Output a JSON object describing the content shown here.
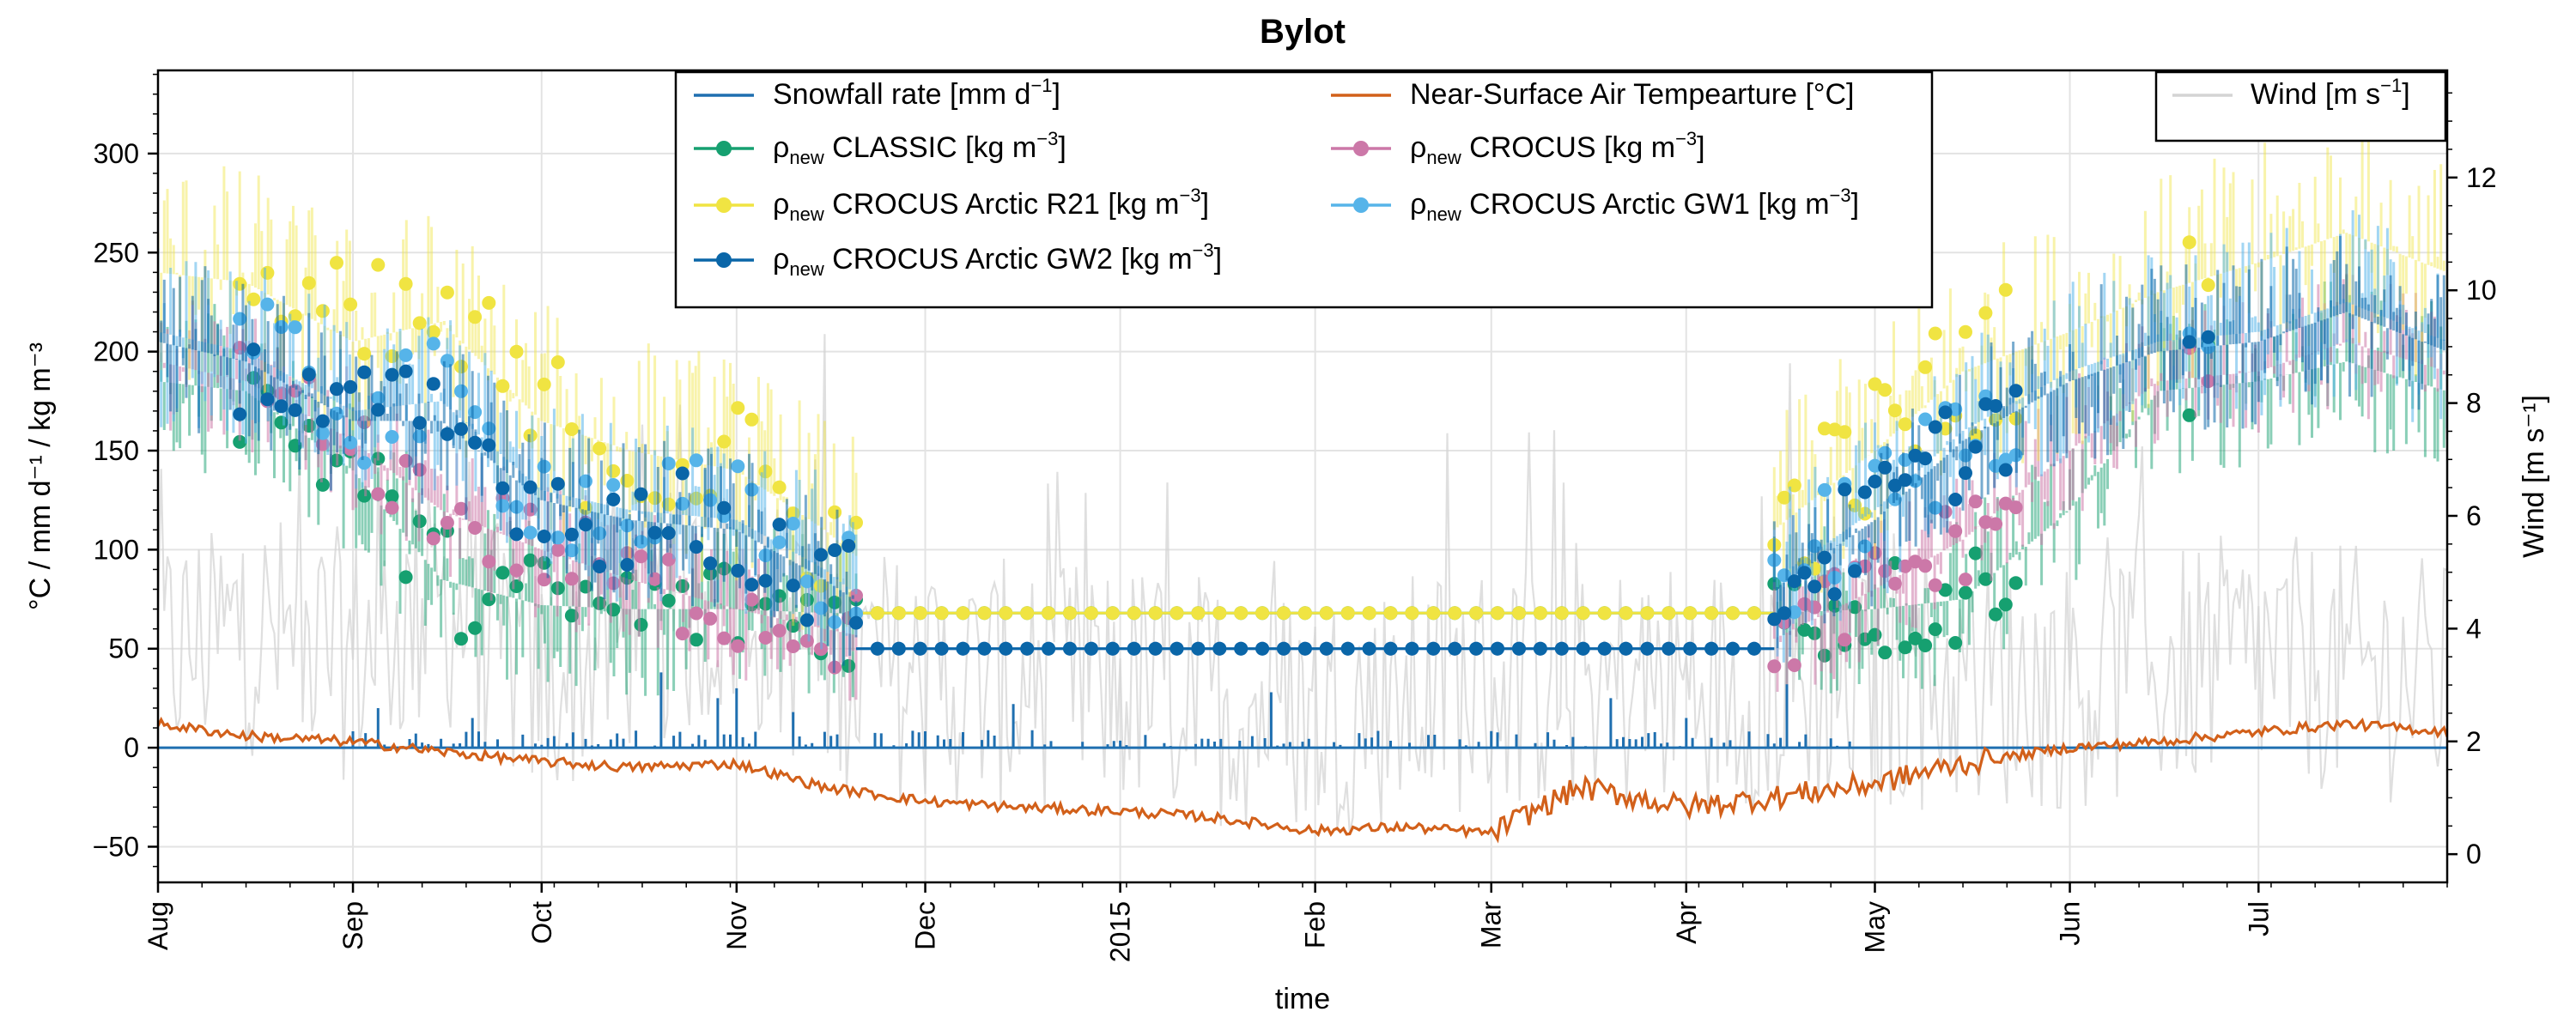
{
  "chart_data": {
    "type": "line",
    "title": "Bylot",
    "xlabel": "time",
    "ylabel_left": "°C / mm d⁻¹ / kg m⁻³",
    "ylabel_right": "Wind [m s⁻¹]",
    "x_range": [
      "2014-08-01",
      "2015-07-31"
    ],
    "x_tick_labels": [
      "Aug",
      "Sep",
      "Oct",
      "Nov",
      "Dec",
      "2015",
      "Feb",
      "Mar",
      "Apr",
      "May",
      "Jun",
      "Jul"
    ],
    "x_tick_dates": [
      "2014-08-01",
      "2014-09-01",
      "2014-10-01",
      "2014-11-01",
      "2014-12-01",
      "2015-01-01",
      "2015-02-01",
      "2015-03-01",
      "2015-04-01",
      "2015-05-01",
      "2015-06-01",
      "2015-07-01"
    ],
    "ylim_left": [
      -68,
      342
    ],
    "yticks_left": [
      -50,
      0,
      50,
      100,
      150,
      200,
      250,
      300
    ],
    "ylim_right": [
      -0.5,
      13.9
    ],
    "yticks_right": [
      0,
      2,
      4,
      6,
      8,
      10,
      12
    ],
    "grid": true,
    "legend_main": {
      "position": "top-center",
      "entries": [
        {
          "label": "Snowfall rate [mm d⁻¹]",
          "marker": false
        },
        {
          "label": "ρnew CLASSIC [kg m⁻³]",
          "marker": true
        },
        {
          "label": "ρnew CROCUS Arctic R21 [kg m⁻³]",
          "marker": true
        },
        {
          "label": "ρnew CROCUS Arctic GW2 [kg m⁻³]",
          "marker": true
        },
        {
          "label": "Near-Surface Air Tempearture [°C]",
          "marker": false
        },
        {
          "label": "ρnew CROCUS [kg m⁻³]",
          "marker": true
        },
        {
          "label": "ρnew CROCUS Arctic GW1 [kg m⁻³]",
          "marker": true
        }
      ]
    },
    "legend_wind": {
      "position": "top-right",
      "label": "Wind [m s⁻¹]"
    },
    "colors": {
      "snowfall": "#1f6fb0",
      "temperature": "#d2601a",
      "classic": "#16a070",
      "crocus": "#cc78a8",
      "r21": "#f0e442",
      "gw1": "#56b4e9",
      "gw2": "#0a66a8",
      "wind": "#d4d4d4"
    },
    "series": [
      {
        "name": "Near-Surface Air Tempearture [°C]",
        "axis": "left",
        "x": [
          "2014-08-01",
          "2014-08-15",
          "2014-09-01",
          "2014-09-15",
          "2014-10-01",
          "2014-10-15",
          "2014-11-01",
          "2014-11-15",
          "2014-12-01",
          "2014-12-15",
          "2015-01-01",
          "2015-01-15",
          "2015-02-01",
          "2015-02-15",
          "2015-03-01",
          "2015-03-15",
          "2015-04-01",
          "2015-04-15",
          "2015-05-01",
          "2015-05-15",
          "2015-06-01",
          "2015-06-15",
          "2015-07-01",
          "2015-07-15",
          "2015-07-31"
        ],
        "values": [
          12,
          6,
          3,
          -2,
          -7,
          -10,
          -8,
          -20,
          -27,
          -30,
          -32,
          -35,
          -42,
          -40,
          -43,
          -20,
          -30,
          -25,
          -18,
          -8,
          0,
          3,
          8,
          12,
          8
        ]
      },
      {
        "name": "Snowfall rate [mm d⁻¹]",
        "axis": "left",
        "x": [
          "2014-09-05",
          "2014-09-20",
          "2014-10-20",
          "2014-10-29",
          "2014-11-01",
          "2014-11-10",
          "2014-12-15",
          "2015-01-25",
          "2015-03-20",
          "2015-04-01",
          "2015-04-17"
        ],
        "values": [
          20,
          15,
          38,
          25,
          30,
          18,
          22,
          28,
          25,
          15,
          32
        ]
      },
      {
        "name": "ρnew CLASSIC [kg m⁻³]",
        "axis": "left",
        "x": [
          "2014-08-01",
          "2014-08-15",
          "2014-09-01",
          "2014-09-15",
          "2014-10-01",
          "2014-10-15",
          "2014-11-01",
          "2014-11-15",
          "2014-12-01",
          "2014-12-15",
          "2015-01-01",
          "2015-02-01",
          "2015-03-01",
          "2015-04-01",
          "2015-04-15",
          "2015-05-01",
          "2015-05-15",
          "2015-06-01",
          "2015-06-15",
          "2015-07-01",
          "2015-07-15",
          "2015-07-31"
        ],
        "values": [
          185,
          180,
          140,
          85,
          72,
          70,
          70,
          68,
          68,
          68,
          68,
          68,
          68,
          68,
          68,
          70,
          75,
          120,
          180,
          185,
          195,
          180
        ]
      },
      {
        "name": "ρnew CROCUS [kg m⁻³]",
        "axis": "left",
        "x": [
          "2014-08-01",
          "2014-08-15",
          "2014-09-01",
          "2014-09-15",
          "2014-10-01",
          "2014-10-15",
          "2014-11-01",
          "2014-11-15",
          "2014-12-01",
          "2015-01-01",
          "2015-02-01",
          "2015-03-01",
          "2015-04-01",
          "2015-04-15",
          "2015-05-01",
          "2015-05-15",
          "2015-06-01",
          "2015-06-15",
          "2015-07-01",
          "2015-07-15",
          "2015-07-31"
        ],
        "values": [
          195,
          185,
          155,
          120,
          100,
          85,
          70,
          60,
          50,
          50,
          50,
          50,
          50,
          55,
          80,
          105,
          150,
          185,
          190,
          205,
          190
        ]
      },
      {
        "name": "ρnew CROCUS Arctic R21 [kg m⁻³]",
        "axis": "left",
        "x": [
          "2014-08-01",
          "2014-08-15",
          "2014-09-01",
          "2014-09-15",
          "2014-10-01",
          "2014-10-15",
          "2014-11-01",
          "2014-11-15",
          "2014-12-01",
          "2015-01-01",
          "2015-02-01",
          "2015-03-01",
          "2015-04-01",
          "2015-04-15",
          "2015-05-01",
          "2015-05-15",
          "2015-06-01",
          "2015-06-15",
          "2015-07-01",
          "2015-07-15",
          "2015-07-31"
        ],
        "values": [
          240,
          235,
          205,
          215,
          165,
          150,
          140,
          110,
          68,
          68,
          68,
          68,
          68,
          110,
          150,
          190,
          210,
          230,
          245,
          260,
          240
        ]
      },
      {
        "name": "ρnew CROCUS Arctic GW1 [kg m⁻³]",
        "axis": "left",
        "x": [
          "2014-08-01",
          "2014-08-15",
          "2014-09-01",
          "2014-09-15",
          "2014-10-01",
          "2014-10-15",
          "2014-11-01",
          "2014-11-15",
          "2014-12-01",
          "2015-01-01",
          "2015-02-01",
          "2015-03-01",
          "2015-04-01",
          "2015-04-15",
          "2015-05-01",
          "2015-05-15",
          "2015-06-01",
          "2015-06-15",
          "2015-07-01",
          "2015-07-15",
          "2015-07-31"
        ],
        "values": [
          210,
          200,
          170,
          175,
          130,
          120,
          115,
          90,
          50,
          50,
          50,
          50,
          50,
          85,
          120,
          160,
          190,
          205,
          210,
          225,
          205
        ]
      },
      {
        "name": "ρnew CROCUS Arctic GW2 [kg m⁻³]",
        "axis": "left",
        "x": [
          "2014-08-01",
          "2014-08-15",
          "2014-09-01",
          "2014-09-15",
          "2014-10-01",
          "2014-10-15",
          "2014-11-01",
          "2014-11-15",
          "2014-12-01",
          "2015-01-01",
          "2015-02-01",
          "2015-03-01",
          "2015-04-01",
          "2015-04-15",
          "2015-05-01",
          "2015-05-15",
          "2015-06-01",
          "2015-06-15",
          "2015-07-01",
          "2015-07-15",
          "2015-07-31"
        ],
        "values": [
          205,
          195,
          165,
          165,
          125,
          115,
          110,
          85,
          50,
          50,
          50,
          50,
          50,
          80,
          115,
          155,
          185,
          200,
          205,
          220,
          200
        ]
      },
      {
        "name": "Wind [m s⁻¹]",
        "axis": "right",
        "x": [
          "2014-08-01",
          "2014-08-15",
          "2014-09-01",
          "2014-09-15",
          "2014-10-01",
          "2014-10-15",
          "2014-11-01",
          "2014-11-15",
          "2014-12-01",
          "2015-01-01",
          "2015-02-01",
          "2015-03-01",
          "2015-04-01",
          "2015-05-01",
          "2015-06-01",
          "2015-07-01",
          "2015-07-31"
        ],
        "values": [
          3.5,
          4,
          3.5,
          4.5,
          3,
          4,
          4.5,
          3.5,
          3,
          3,
          2.5,
          3,
          3,
          3,
          3,
          3.5,
          3
        ]
      }
    ]
  }
}
